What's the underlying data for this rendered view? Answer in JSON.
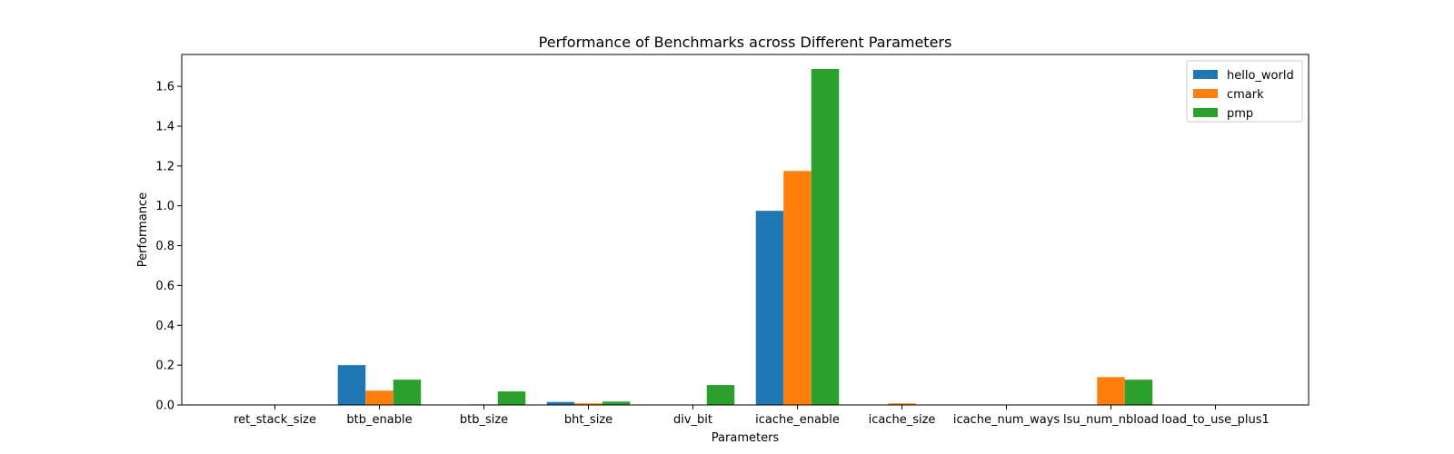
{
  "chart_data": {
    "type": "bar",
    "title": "Performance of Benchmarks across Different Parameters",
    "xlabel": "Parameters",
    "ylabel": "Performance",
    "ylim": [
      0,
      1.76
    ],
    "yticks": [
      "0.0",
      "0.2",
      "0.4",
      "0.6",
      "0.8",
      "1.0",
      "1.2",
      "1.4",
      "1.6"
    ],
    "categories": [
      "ret_stack_size",
      "btb_enable",
      "btb_size",
      "bht_size",
      "div_bit",
      "icache_enable",
      "icache_size",
      "icache_num_ways",
      "lsu_num_nbload",
      "load_to_use_plus1"
    ],
    "series": [
      {
        "name": "hello_world",
        "color": "#1f77b4",
        "values": [
          0,
          0.2,
          0,
          0.015,
          0,
          0.975,
          0,
          0,
          0,
          0
        ]
      },
      {
        "name": "cmark",
        "color": "#ff7f0e",
        "values": [
          0,
          0.072,
          0.003,
          0.008,
          0,
          1.175,
          0.008,
          0,
          0.14,
          0
        ]
      },
      {
        "name": "pmp",
        "color": "#2ca02c",
        "values": [
          0,
          0.127,
          0.068,
          0.017,
          0.1,
          1.687,
          0,
          0,
          0.127,
          0
        ]
      }
    ],
    "legend_position": "top-right",
    "grid": false
  }
}
